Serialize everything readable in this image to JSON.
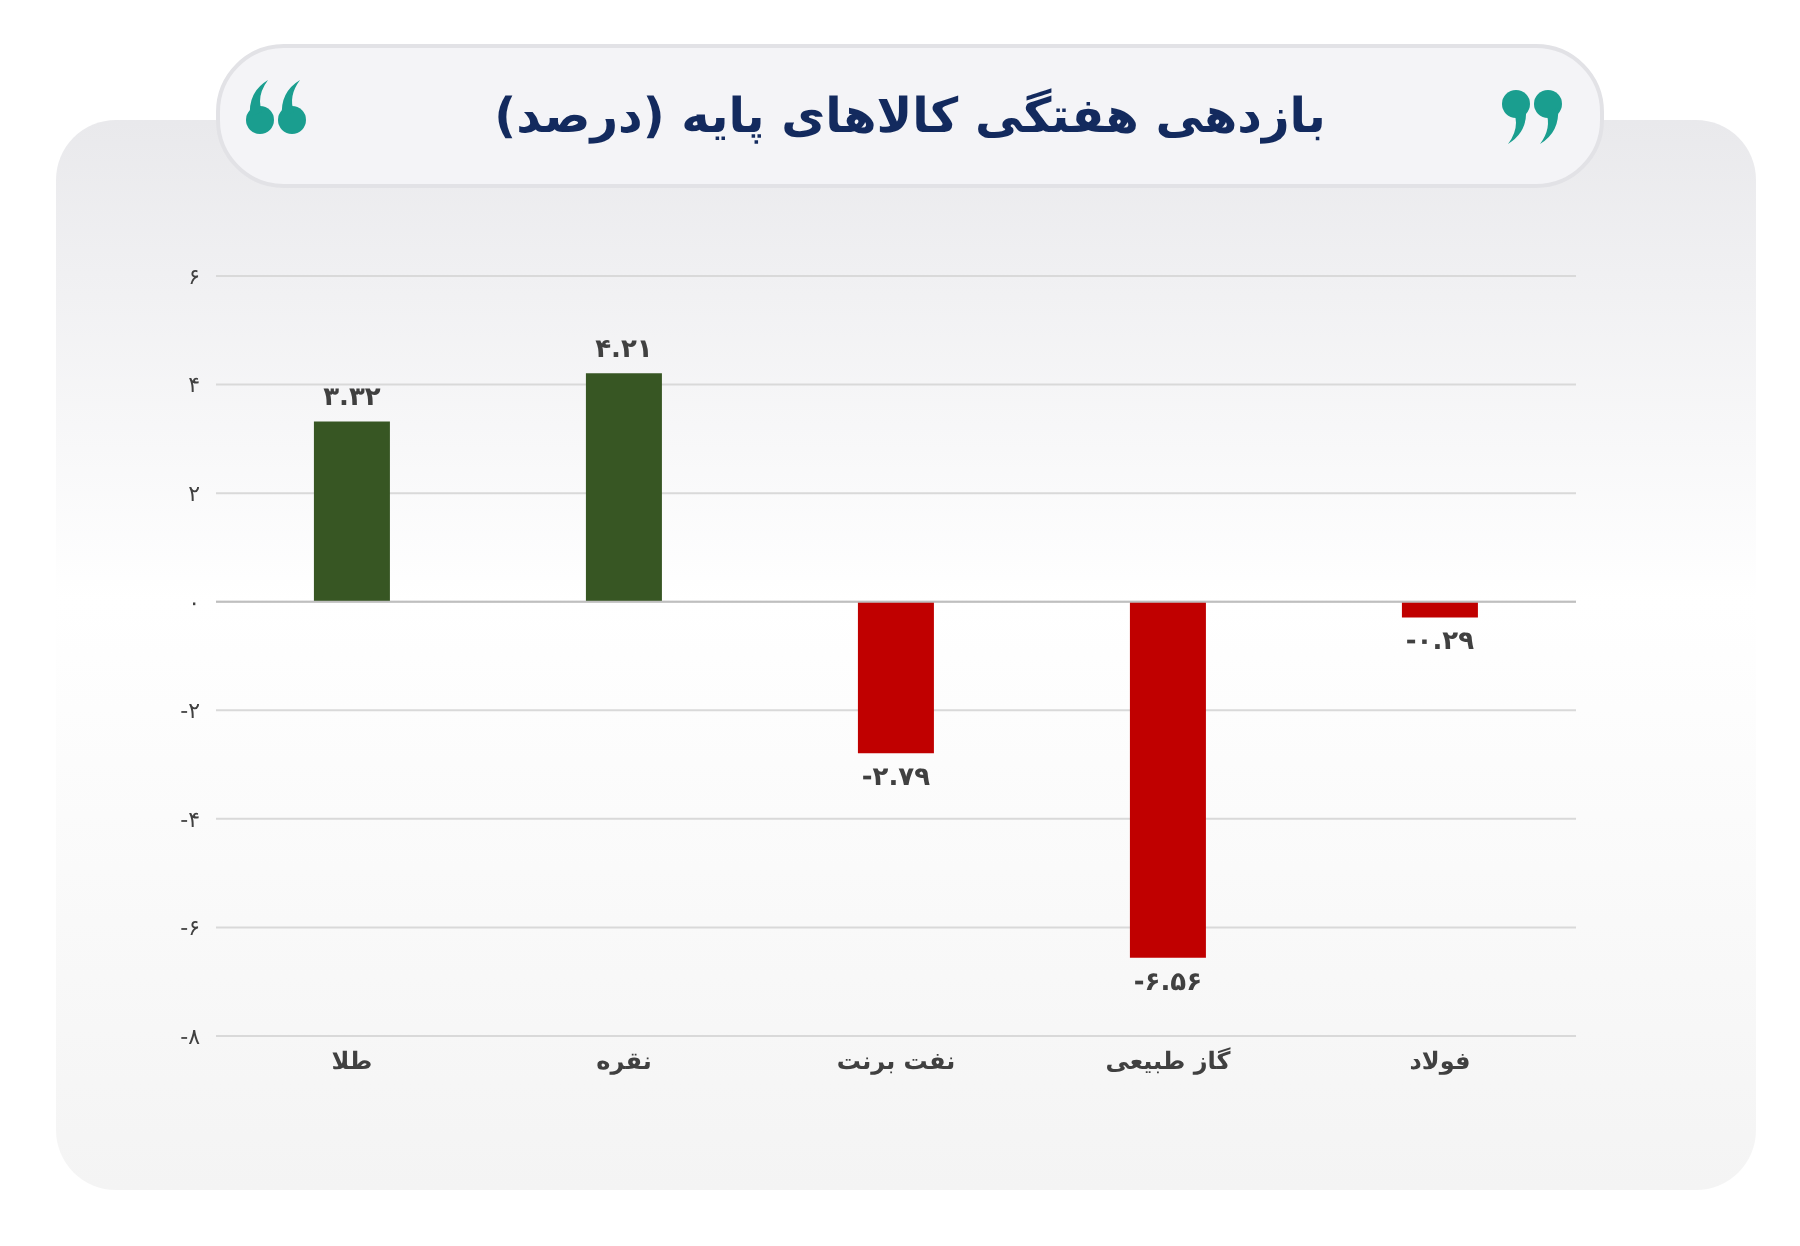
{
  "chart_data": {
    "type": "bar",
    "title": "بازدهی هفتگی کالاهای پایه (درصد)",
    "categories": [
      "طلا",
      "نقره",
      "نفت برنت",
      "گاز طبیعی",
      "فولاد"
    ],
    "values": [
      3.32,
      4.21,
      -2.79,
      -6.56,
      -0.29
    ],
    "colors": [
      "#375623",
      "#375623",
      "#c00000",
      "#c00000",
      "#c00000"
    ],
    "value_labels": [
      "۳.۳۲",
      "۴.۲۱",
      "-۲.۷۹",
      "-۶.۵۶",
      "-۰.۲۹"
    ],
    "ylim": [
      -8,
      6
    ],
    "yticks": [
      {
        "value": -8,
        "label": "-۸"
      },
      {
        "value": -6,
        "label": "-۶"
      },
      {
        "value": -4,
        "label": "-۴"
      },
      {
        "value": -2,
        "label": "-۲"
      },
      {
        "value": 0,
        "label": "۰"
      },
      {
        "value": 2,
        "label": "۲"
      },
      {
        "value": 4,
        "label": "۴"
      },
      {
        "value": 6,
        "label": "۶"
      }
    ],
    "grid": "y",
    "legend": false
  }
}
